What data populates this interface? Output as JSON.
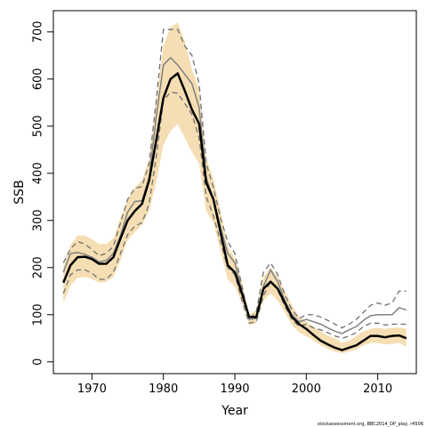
{
  "chart_data": {
    "type": "line",
    "xlabel": "Year",
    "ylabel": "SSB",
    "xlim": [
      1964.6,
      2015.4
    ],
    "ylim": [
      -25,
      745
    ],
    "x_ticks": [
      1970,
      1980,
      1990,
      2000,
      2010
    ],
    "y_ticks": [
      0,
      100,
      200,
      300,
      400,
      500,
      600,
      700
    ],
    "footnote": "stockassessment.org, BBC2014_DP_play, r4506",
    "colors": {
      "band": "#f5deb3",
      "main": "#000000",
      "reference": "#808080",
      "dashed": "#707070"
    },
    "x": [
      1966,
      1967,
      1968,
      1969,
      1970,
      1971,
      1972,
      1973,
      1974,
      1975,
      1976,
      1977,
      1978,
      1979,
      1980,
      1981,
      1982,
      1983,
      1984,
      1985,
      1986,
      1987,
      1988,
      1989,
      1990,
      1991,
      1992,
      1993,
      1994,
      1995,
      1996,
      1997,
      1998,
      1999,
      2000,
      2001,
      2002,
      2003,
      2004,
      2005,
      2006,
      2007,
      2008,
      2009,
      2010,
      2011,
      2012,
      2013,
      2014
    ],
    "series": [
      {
        "role": "estimate",
        "values": [
          168,
          205,
          222,
          223,
          218,
          208,
          208,
          222,
          262,
          300,
          320,
          335,
          385,
          470,
          560,
          600,
          612,
          575,
          535,
          505,
          380,
          345,
          275,
          205,
          190,
          145,
          95,
          95,
          155,
          170,
          155,
          125,
          95,
          80,
          70,
          57,
          45,
          37,
          30,
          25,
          30,
          35,
          45,
          55,
          55,
          52,
          55,
          56,
          50
        ]
      },
      {
        "role": "ci-upper",
        "values": [
          200,
          248,
          268,
          268,
          260,
          250,
          250,
          262,
          305,
          345,
          370,
          385,
          430,
          555,
          670,
          710,
          720,
          680,
          620,
          580,
          430,
          390,
          320,
          245,
          220,
          170,
          100,
          110,
          180,
          200,
          180,
          150,
          120,
          95,
          85,
          75,
          65,
          55,
          50,
          40,
          45,
          55,
          65,
          70,
          72,
          70,
          72,
          73,
          70
        ]
      },
      {
        "role": "ci-lower",
        "values": [
          125,
          162,
          178,
          180,
          176,
          168,
          170,
          180,
          215,
          258,
          275,
          290,
          320,
          380,
          460,
          490,
          505,
          475,
          445,
          420,
          320,
          295,
          235,
          175,
          160,
          125,
          78,
          82,
          130,
          145,
          130,
          105,
          78,
          62,
          54,
          45,
          35,
          28,
          22,
          18,
          22,
          26,
          35,
          40,
          40,
          37,
          38,
          40,
          32
        ]
      },
      {
        "role": "reference-mid",
        "values": [
          190,
          230,
          232,
          228,
          222,
          212,
          215,
          230,
          268,
          318,
          340,
          342,
          390,
          520,
          630,
          645,
          630,
          610,
          590,
          540,
          390,
          345,
          285,
          230,
          210,
          150,
          90,
          92,
          160,
          195,
          170,
          130,
          100,
          85,
          90,
          85,
          80,
          72,
          65,
          60,
          68,
          75,
          88,
          98,
          100,
          100,
          100,
          115,
          110
        ]
      },
      {
        "role": "reference-upper",
        "values": [
          210,
          240,
          255,
          250,
          238,
          225,
          230,
          245,
          295,
          345,
          368,
          372,
          420,
          555,
          705,
          705,
          705,
          670,
          650,
          590,
          420,
          370,
          305,
          255,
          230,
          160,
          92,
          105,
          190,
          210,
          185,
          142,
          110,
          92,
          100,
          100,
          95,
          88,
          80,
          72,
          80,
          90,
          105,
          120,
          125,
          120,
          125,
          150,
          150
        ]
      },
      {
        "role": "reference-lower",
        "values": [
          145,
          185,
          195,
          195,
          188,
          175,
          175,
          190,
          230,
          270,
          288,
          295,
          335,
          435,
          555,
          572,
          570,
          548,
          525,
          475,
          350,
          310,
          255,
          200,
          185,
          130,
          82,
          85,
          140,
          170,
          152,
          118,
          90,
          75,
          80,
          72,
          68,
          62,
          55,
          50,
          55,
          62,
          75,
          82,
          82,
          78,
          80,
          80,
          80
        ]
      }
    ]
  }
}
